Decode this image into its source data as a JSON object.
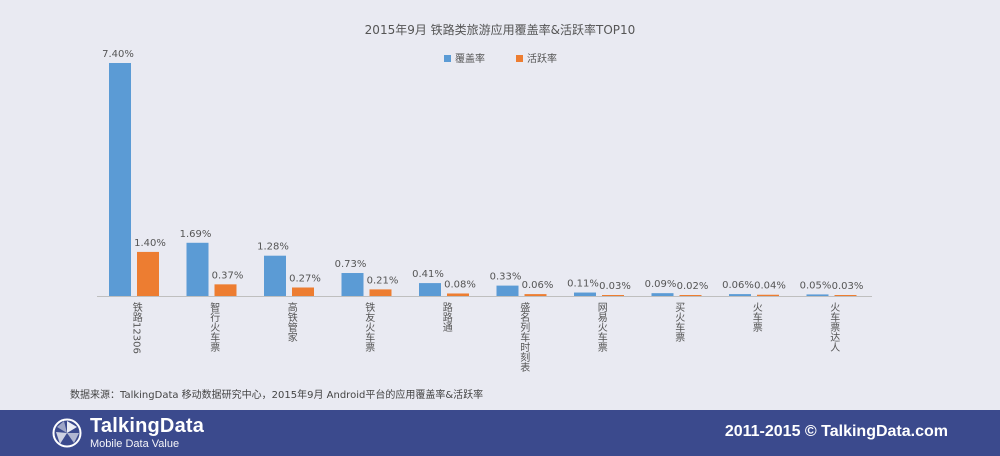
{
  "chart_data": {
    "type": "bar",
    "title": "2015年9月 铁路类旅游应用覆盖率&活跃率TOP10",
    "categories": [
      "铁路12306",
      "智行火车票",
      "高铁管家",
      "铁友火车票",
      "路路通",
      "盛名列车时刻表",
      "网易火车票",
      "买火车票",
      "火车票",
      "火车票达人"
    ],
    "series": [
      {
        "name": "覆盖率",
        "values": [
          7.4,
          1.69,
          1.28,
          0.73,
          0.41,
          0.33,
          0.11,
          0.09,
          0.06,
          0.05
        ],
        "labels": [
          "7.40%",
          "1.69%",
          "1.28%",
          "0.73%",
          "0.41%",
          "0.33%",
          "0.11%",
          "0.09%",
          "0.06%",
          "0.05%"
        ],
        "color": "#5b9bd5"
      },
      {
        "name": "活跃率",
        "values": [
          1.4,
          0.37,
          0.27,
          0.21,
          0.08,
          0.06,
          0.03,
          0.02,
          0.04,
          0.03
        ],
        "labels": [
          "1.40%",
          "0.37%",
          "0.27%",
          "0.21%",
          "0.08%",
          "0.06%",
          "0.03%",
          "0.02%",
          "0.04%",
          "0.03%"
        ],
        "color": "#ed7d31"
      }
    ],
    "ylim": [
      0,
      7.4
    ],
    "legend": "top-center",
    "grid": false
  },
  "source_note": "数据来源：TalkingData 移动数据研究中心，2015年9月 Android平台的应用覆盖率&活跃率",
  "footer": {
    "brand": "TalkingData",
    "tagline": "Mobile Data Value",
    "copyright": "2011-2015 © TalkingData.com",
    "bg_color": "#3b4a8d"
  },
  "colors": {
    "background": "#e9eaf2",
    "axis": "#bfbfbf"
  }
}
